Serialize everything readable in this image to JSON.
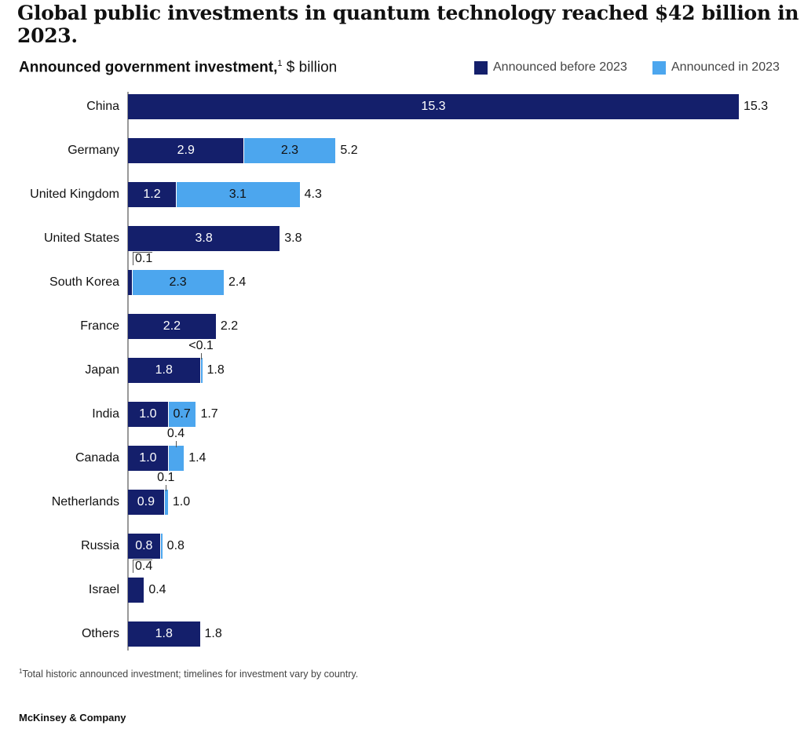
{
  "title": "Global public investments in quantum technology reached $42 billion in 2023.",
  "subtitle": {
    "bold": "Announced government investment,",
    "sup": "1",
    "unit": " $ billion"
  },
  "colors": {
    "before": "#141f6b",
    "in2023": "#4ca6ee"
  },
  "footnote": {
    "sup": "1",
    "text": "Total historic announced investment; timelines for investment vary by country."
  },
  "logo": "McKinsey & Company",
  "chart_data": {
    "type": "bar",
    "orientation": "horizontal",
    "stacked": true,
    "legend_position": "top-right",
    "categories": [
      "China",
      "Germany",
      "United Kingdom",
      "United States",
      "South Korea",
      "France",
      "Japan",
      "India",
      "Canada",
      "Netherlands",
      "Russia",
      "Israel",
      "Others"
    ],
    "series": [
      {
        "name": "Announced before 2023",
        "values": [
          15.3,
          2.9,
          1.2,
          3.8,
          0.1,
          2.2,
          1.8,
          1.0,
          1.0,
          0.9,
          0.8,
          0.4,
          1.8
        ],
        "labels": [
          "15.3",
          "2.9",
          "1.2",
          "3.8",
          "0.1",
          "2.2",
          "1.8",
          "1.0",
          "1.0",
          "0.9",
          "0.8",
          "0.4",
          "1.8"
        ]
      },
      {
        "name": "Announced in 2023",
        "values": [
          0,
          2.3,
          3.1,
          0,
          2.3,
          0,
          0.03,
          0.7,
          0.4,
          0.1,
          0.02,
          0,
          0
        ],
        "labels": [
          "",
          "2.3",
          "3.1",
          "",
          "2.3",
          "",
          "<0.1",
          "0.7",
          "0.4",
          "0.1",
          "",
          "",
          ""
        ]
      }
    ],
    "totals": [
      "15.3",
      "5.2",
      "4.3",
      "3.8",
      "2.4",
      "2.2",
      "1.8",
      "1.7",
      "1.4",
      "1.0",
      "0.8",
      "0.4",
      "1.8"
    ],
    "grid": false
  }
}
